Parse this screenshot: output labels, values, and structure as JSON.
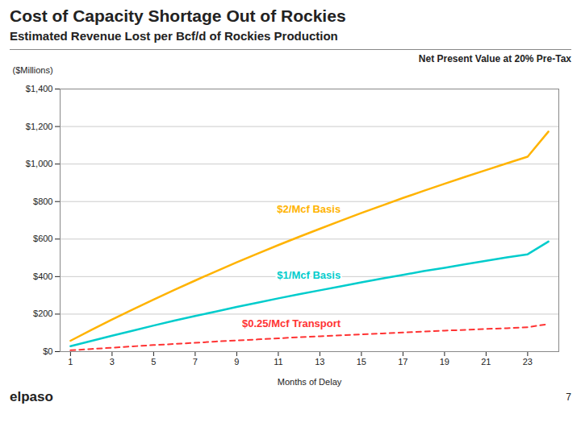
{
  "chart_data": {
    "type": "line",
    "title": "Cost of Capacity Shortage Out of Rockies",
    "subtitle": "Estimated Revenue Lost per Bcf/d of Rockies Production",
    "subtitle2": "Net Present Value at 20% Pre-Tax",
    "xlabel": "Months of Delay",
    "ylabel": "($Millions)",
    "annotations": [
      "elpaso",
      "7"
    ],
    "x": [
      1,
      2,
      3,
      4,
      5,
      6,
      7,
      8,
      9,
      10,
      11,
      12,
      13,
      14,
      15,
      16,
      17,
      18,
      19,
      20,
      21,
      22,
      23,
      24
    ],
    "series": [
      {
        "name": "$2/Mcf Basis",
        "color": "#FFB300",
        "line_style": "solid",
        "values": [
          58,
          115,
          171,
          225,
          278,
          329,
          379,
          428,
          476,
          522,
          568,
          612,
          655,
          697,
          739,
          779,
          819,
          857,
          895,
          932,
          968,
          1004,
          1039,
          1173
        ]
      },
      {
        "name": "$1/Mcf Basis",
        "color": "#00CCCC",
        "line_style": "solid",
        "values": [
          29,
          57,
          85,
          112,
          139,
          165,
          190,
          214,
          238,
          261,
          284,
          306,
          327,
          348,
          369,
          390,
          409,
          429,
          447,
          466,
          484,
          502,
          519,
          587
        ]
      },
      {
        "name": "$0.25/Mcf Transport",
        "color": "#FF3333",
        "line_style": "dashed",
        "values": [
          7,
          14,
          21,
          28,
          35,
          41,
          47,
          54,
          60,
          65,
          71,
          77,
          82,
          87,
          92,
          97,
          102,
          107,
          112,
          116,
          121,
          125,
          130,
          147
        ]
      }
    ],
    "xlim": [
      0.5,
      24.5
    ],
    "xticks": [
      1,
      3,
      5,
      7,
      9,
      11,
      13,
      15,
      17,
      19,
      21,
      23
    ],
    "ylim": [
      0,
      1400
    ],
    "yticks": [
      {
        "value": 0,
        "label": "$0"
      },
      {
        "value": 200,
        "label": "$200"
      },
      {
        "value": 400,
        "label": "$400"
      },
      {
        "value": 600,
        "label": "$600"
      },
      {
        "value": 800,
        "label": "$800"
      },
      {
        "value": 1000,
        "label": "$1,000"
      },
      {
        "value": 1200,
        "label": "$1,200"
      },
      {
        "value": 1400,
        "label": "$1,400"
      }
    ],
    "grid": true
  }
}
